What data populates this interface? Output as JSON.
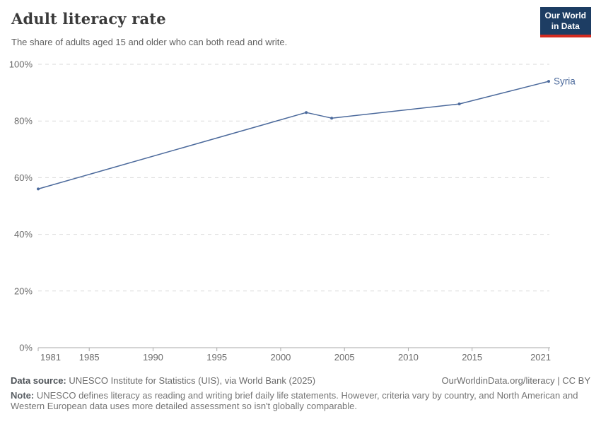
{
  "header": {
    "title": "Adult literacy rate",
    "subtitle": "The share of adults aged 15 and older who can both read and write.",
    "logo": {
      "line1": "Our World",
      "line2": "in Data",
      "bg_color": "#1d3d63",
      "accent_color": "#d42b20"
    }
  },
  "chart_data": {
    "type": "line",
    "title": "Adult literacy rate",
    "xlabel": "",
    "ylabel": "",
    "xlim": [
      1981,
      2021
    ],
    "ylim": [
      0,
      100
    ],
    "x_ticks": [
      1981,
      1985,
      1990,
      1995,
      2000,
      2005,
      2010,
      2015,
      2021
    ],
    "y_ticks": [
      {
        "value": 0,
        "label": "0%"
      },
      {
        "value": 20,
        "label": "20%"
      },
      {
        "value": 40,
        "label": "40%"
      },
      {
        "value": 60,
        "label": "60%"
      },
      {
        "value": 80,
        "label": "80%"
      },
      {
        "value": 100,
        "label": "100%"
      }
    ],
    "grid": "horizontal-dashed",
    "legend_position": "end-of-line-label",
    "series": [
      {
        "name": "Syria",
        "color": "#4c6a9c",
        "points": [
          {
            "x": 1981,
            "y": 56
          },
          {
            "x": 2002,
            "y": 83
          },
          {
            "x": 2004,
            "y": 81
          },
          {
            "x": 2014,
            "y": 86
          },
          {
            "x": 2021,
            "y": 94
          }
        ]
      }
    ]
  },
  "footer": {
    "data_source_label": "Data source:",
    "data_source_text": "UNESCO Institute for Statistics (UIS), via World Bank (2025)",
    "link": "OurWorldinData.org/literacy | CC BY",
    "note_label": "Note:",
    "note_text": "UNESCO defines literacy as reading and writing brief daily life statements. However, criteria vary by country, and North American and Western European data uses more detailed assessment so isn't globally comparable."
  }
}
